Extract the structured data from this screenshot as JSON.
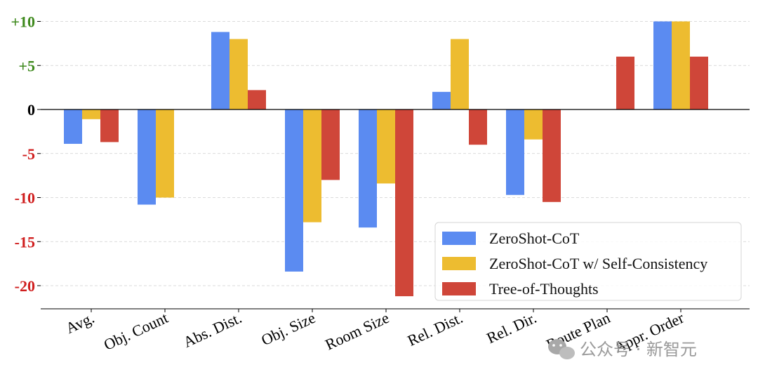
{
  "chart_data": {
    "type": "bar",
    "categories": [
      "Avg.",
      "Obj. Count",
      "Abs. Dist.",
      "Obj. Size",
      "Room Size",
      "Rel. Dist.",
      "Rel. Dir.",
      "Route Plan",
      "Appr. Order"
    ],
    "series": [
      {
        "name": "ZeroShot-CoT",
        "color": "#5B8BF1",
        "values": [
          -3.9,
          -10.8,
          8.8,
          -18.4,
          -13.4,
          2.0,
          -9.7,
          0,
          10.0
        ]
      },
      {
        "name": "ZeroShot-CoT w/ Self-Consistency",
        "color": "#EDBC30",
        "values": [
          -1.1,
          -10.0,
          8.0,
          -12.8,
          -8.4,
          8.0,
          -3.4,
          0,
          10.0
        ]
      },
      {
        "name": "Tree-of-Thoughts",
        "color": "#CF4639",
        "values": [
          -3.7,
          0,
          2.2,
          -8.0,
          -21.2,
          -4.0,
          -10.5,
          6.0,
          6.0
        ]
      }
    ],
    "ylim": [
      -22.5,
      10.5
    ],
    "yticks": [
      {
        "value": 10,
        "label": "+10"
      },
      {
        "value": 5,
        "label": "+5"
      },
      {
        "value": 0,
        "label": "0"
      },
      {
        "value": -5,
        "label": "-5"
      },
      {
        "value": -10,
        "label": "-10"
      },
      {
        "value": -15,
        "label": "-15"
      },
      {
        "value": -20,
        "label": "-20"
      }
    ],
    "tick_colors": {
      "positive": "#3F8A1E",
      "zero": "#000000",
      "negative": "#D01F1F"
    },
    "grid": "horizontal dashed",
    "legend_position": "lower-right",
    "title": "",
    "xlabel": "",
    "ylabel": ""
  },
  "watermark": {
    "icon": "wechat-icon",
    "text": "公众号 · 新智元"
  }
}
